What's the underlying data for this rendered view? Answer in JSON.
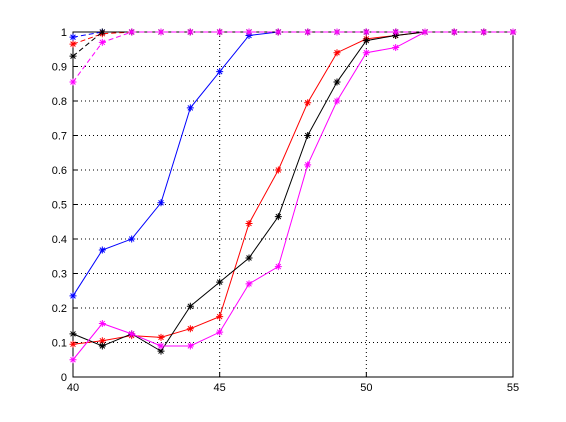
{
  "chart_data": {
    "type": "line",
    "x": [
      40,
      41,
      42,
      43,
      44,
      45,
      46,
      47,
      48,
      49,
      50,
      51,
      52,
      53,
      54,
      55
    ],
    "series": [
      {
        "color": "#0000ff",
        "dashed": false,
        "values": [
          0.235,
          0.368,
          0.4,
          0.505,
          0.78,
          0.885,
          0.99,
          1,
          1,
          1,
          1,
          1,
          1,
          1,
          1,
          1
        ]
      },
      {
        "color": "#ff0000",
        "dashed": false,
        "values": [
          0.095,
          0.105,
          0.12,
          0.115,
          0.14,
          0.175,
          0.445,
          0.6,
          0.795,
          0.94,
          0.98,
          0.99,
          1,
          1,
          1,
          1
        ]
      },
      {
        "color": "#000000",
        "dashed": false,
        "values": [
          0.125,
          0.09,
          0.125,
          0.075,
          0.205,
          0.275,
          0.345,
          0.465,
          0.7,
          0.855,
          0.975,
          0.99,
          1,
          1,
          1,
          1
        ]
      },
      {
        "color": "#ff00ff",
        "dashed": false,
        "values": [
          0.05,
          0.155,
          0.125,
          0.09,
          0.09,
          0.13,
          0.27,
          0.32,
          0.615,
          0.8,
          0.94,
          0.955,
          1,
          1,
          1,
          1
        ]
      },
      {
        "color": "#0000ff",
        "dashed": true,
        "values": [
          0.985,
          1,
          1,
          1,
          1,
          1,
          1,
          1,
          1,
          1,
          1,
          1,
          1,
          1,
          1,
          1
        ]
      },
      {
        "color": "#ff0000",
        "dashed": true,
        "values": [
          0.965,
          0.995,
          1,
          1,
          1,
          1,
          1,
          1,
          1,
          1,
          1,
          1,
          1,
          1,
          1,
          1
        ]
      },
      {
        "color": "#000000",
        "dashed": true,
        "values": [
          0.93,
          1,
          1,
          1,
          1,
          1,
          1,
          1,
          1,
          1,
          1,
          1,
          1,
          1,
          1,
          1
        ]
      },
      {
        "color": "#ff00ff",
        "dashed": true,
        "values": [
          0.855,
          0.97,
          1,
          1,
          1,
          1,
          1,
          1,
          1,
          1,
          1,
          1,
          1,
          1,
          1,
          1
        ]
      }
    ],
    "xlim": [
      40,
      55
    ],
    "xticks": [
      40,
      45,
      50,
      55
    ],
    "ylim": [
      0,
      1
    ],
    "yticks": [
      0,
      0.1,
      0.2,
      0.3,
      0.4,
      0.5,
      0.6,
      0.7,
      0.8,
      0.9,
      1
    ],
    "grid": true
  }
}
